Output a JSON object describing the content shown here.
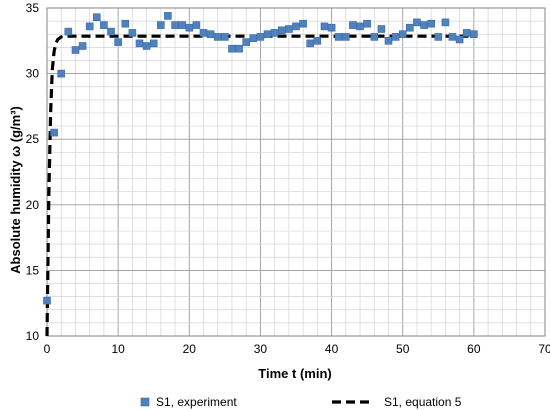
{
  "chart_data": {
    "type": "scatter",
    "xlabel": "Time t (min)",
    "ylabel": "Absolute humidity ω (g/m³)",
    "xlim": [
      0,
      70
    ],
    "ylim": [
      10,
      35
    ],
    "xticks": [
      0,
      10,
      20,
      30,
      40,
      50,
      60,
      70
    ],
    "yticks": [
      10,
      15,
      20,
      25,
      30,
      35
    ],
    "grid": true,
    "legend_position": "bottom",
    "series": [
      {
        "name": "S1, experiment",
        "style": "markers",
        "color": "#4F81BD",
        "x": [
          0,
          1,
          2,
          3,
          4,
          5,
          6,
          7,
          8,
          9,
          10,
          11,
          12,
          13,
          14,
          15,
          16,
          17,
          18,
          19,
          20,
          21,
          22,
          23,
          24,
          25,
          26,
          27,
          28,
          29,
          30,
          31,
          32,
          33,
          34,
          35,
          36,
          37,
          38,
          39,
          40,
          41,
          42,
          43,
          44,
          45,
          46,
          47,
          48,
          49,
          50,
          51,
          52,
          53,
          54,
          55,
          56,
          57,
          58,
          59,
          60
        ],
        "y": [
          12.7,
          25.5,
          30.0,
          33.2,
          31.8,
          32.1,
          33.6,
          34.3,
          33.7,
          33.2,
          32.4,
          33.8,
          33.1,
          32.3,
          32.1,
          32.3,
          33.7,
          34.4,
          33.7,
          33.7,
          33.5,
          33.7,
          33.1,
          33.0,
          32.8,
          32.8,
          31.9,
          31.9,
          32.4,
          32.7,
          32.8,
          33.0,
          33.1,
          33.3,
          33.4,
          33.6,
          33.8,
          32.3,
          32.5,
          33.6,
          33.5,
          32.8,
          32.8,
          33.7,
          33.6,
          33.8,
          32.8,
          33.4,
          32.5,
          32.8,
          33.0,
          33.5,
          33.9,
          33.7,
          33.8,
          32.8,
          33.9,
          32.8,
          32.6,
          33.1,
          33.0
        ]
      },
      {
        "name": "S1, equation 5",
        "style": "dashed-line",
        "color": "#000000",
        "x": [
          0,
          0.25,
          0.5,
          0.75,
          1.0,
          1.25,
          1.5,
          2.0,
          2.5,
          3.0,
          4.0,
          60
        ],
        "y": [
          10.0,
          20.6,
          27.0,
          30.3,
          31.7,
          32.3,
          32.6,
          32.8,
          32.85,
          32.85,
          32.85,
          32.85
        ]
      }
    ]
  }
}
